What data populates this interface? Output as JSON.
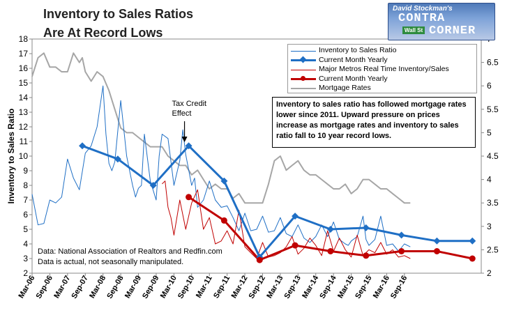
{
  "header": {
    "title_line1": "Inventory to Sales Ratios",
    "title_line2": "Are At Record Lows"
  },
  "logo": {
    "line1": "David Stockman's",
    "line2": "CONTRA",
    "line3": "CORNER",
    "sign": "Wall St"
  },
  "annotation_box": {
    "text": "Inventory to sales ratio has followed mortgage rates lower since 2011. Upward pressure on prices increase as mortgage rates and inventory to sales ratio fall to 10 year record lows."
  },
  "source_note": {
    "line1": "Data: National Association of Realtors and Redfin.com",
    "line2": "Data is actual, not seasonally manipulated."
  },
  "colors": {
    "nar_line": "#1f6fc5",
    "current_yearly": "#1f6fc5",
    "metros_line": "#c00000",
    "metros_yearly": "#c00000",
    "mortgage": "#a6a6a6"
  },
  "chart_data": {
    "type": "line",
    "title": "Inventory to Sales Ratios Are At Record Lows",
    "ylabel": "Inventory to Sales Ratio",
    "ylim": [
      2,
      18
    ],
    "y_ticks": [
      "2",
      "3",
      "4",
      "5",
      "6",
      "7",
      "8",
      "9",
      "10",
      "11",
      "12",
      "13",
      "14",
      "15",
      "16",
      "17",
      "18"
    ],
    "y2lim": [
      2,
      7
    ],
    "y2_ticks": [
      "2",
      "2.5",
      "3",
      "3.5",
      "4",
      "4.5",
      "5",
      "5.5",
      "6",
      "6.5",
      "7"
    ],
    "x_labels": [
      "Mar-06",
      "Sep-06",
      "Mar-07",
      "Sep-07",
      "Mar-08",
      "Sep-08",
      "Mar-09",
      "Sep-09",
      "Mar-10",
      "Sep-10",
      "Mar-11",
      "Sep-11",
      "Mar-12",
      "Sep-12",
      "Mar-13",
      "Sep-13",
      "Mar-14",
      "Sep-14",
      "Mar-15",
      "Sep-15",
      "Mar-16",
      "Sep-16"
    ],
    "grid": false,
    "legend_position": "top-right",
    "annotations": [
      {
        "text_line1": "Tax Credit",
        "text_line2": "Effect",
        "x": 53
      }
    ],
    "legend": [
      "Inventory to Sales Ratio",
      "Current Month Yearly",
      "Major Metros Real Time Inventory/Sales",
      "Current Month Yearly",
      "Mortgage Rates"
    ],
    "series": [
      {
        "name": "Inventory to Sales Ratio",
        "axis": "left",
        "x": [
          0,
          2,
          4,
          6,
          8,
          10,
          12,
          14,
          16,
          18,
          20,
          22,
          24,
          25,
          26,
          27,
          28,
          30,
          32,
          34,
          35,
          36,
          37,
          38,
          40,
          42,
          43,
          44,
          46,
          48,
          50,
          51,
          52,
          54,
          55,
          56,
          58,
          60,
          62,
          64,
          66,
          68,
          70,
          72,
          74,
          76,
          78,
          80,
          82,
          84,
          86,
          88,
          90,
          92,
          94,
          96,
          98,
          100,
          102,
          104,
          106,
          107,
          108,
          110,
          112,
          113,
          114,
          116,
          118,
          120,
          122,
          124,
          126,
          128
        ],
        "values": [
          7.4,
          5.3,
          5.4,
          7.0,
          6.8,
          7.2,
          9.8,
          8.5,
          7.7,
          10.2,
          10.7,
          12.0,
          14.8,
          11.5,
          9.5,
          9.0,
          9.6,
          13.8,
          10.0,
          8.0,
          7.2,
          7.8,
          8.0,
          11.5,
          8.3,
          7.0,
          10.0,
          11.5,
          11.2,
          8.0,
          9.7,
          11.8,
          10.1,
          8.0,
          8.5,
          6.5,
          7.0,
          8.3,
          7.0,
          6.5,
          6.6,
          5.8,
          4.9,
          6.1,
          4.9,
          5.0,
          5.9,
          4.8,
          4.9,
          5.8,
          4.7,
          4.5,
          5.3,
          4.4,
          4.1,
          4.5,
          5.3,
          4.5,
          5.5,
          4.3,
          4.0,
          3.9,
          4.2,
          4.5,
          5.9,
          4.3,
          3.9,
          4.3,
          5.9,
          3.9,
          4.0,
          3.5,
          4.0,
          3.8
        ]
      },
      {
        "name": "Current Month Yearly",
        "axis": "left",
        "x": [
          17,
          29,
          41,
          53,
          65,
          77,
          89,
          101,
          113,
          125,
          137,
          149
        ],
        "values": [
          10.7,
          9.8,
          8.0,
          10.7,
          8.3,
          3.1,
          5.9,
          5.0,
          5.1,
          4.6,
          4.2,
          4.2
        ]
      },
      {
        "name": "Major Metros Real Time Inventory/Sales",
        "axis": "left",
        "x": [
          44,
          45,
          46,
          47,
          48,
          50,
          52,
          54,
          56,
          58,
          60,
          62,
          64,
          66,
          68,
          70,
          72,
          74,
          76,
          78,
          80,
          82,
          84,
          86,
          88,
          90,
          92,
          94,
          96,
          98,
          100,
          102,
          104,
          106,
          108,
          110,
          112,
          114,
          116,
          118,
          120,
          122,
          124,
          126,
          128
        ],
        "values": [
          8.1,
          8.3,
          6.5,
          5.8,
          4.6,
          7.0,
          5.0,
          6.8,
          7.7,
          5.0,
          5.8,
          4.0,
          4.2,
          4.9,
          4.0,
          6.3,
          3.8,
          3.4,
          3.0,
          4.1,
          3.1,
          3.2,
          3.4,
          3.8,
          4.5,
          3.3,
          3.7,
          4.4,
          3.9,
          3.2,
          4.9,
          3.5,
          4.4,
          3.6,
          3.1,
          4.6,
          3.2,
          3.6,
          3.4,
          4.1,
          3.3,
          3.6,
          3.1,
          3.2,
          3.0
        ]
      },
      {
        "name": "Current Month Yearly",
        "axis": "left",
        "x": [
          53,
          65,
          77,
          89,
          101,
          113,
          125,
          137,
          149
        ],
        "values": [
          7.2,
          5.6,
          2.9,
          3.9,
          3.5,
          3.2,
          3.5,
          3.5,
          3.0
        ]
      },
      {
        "name": "Mortgage Rates",
        "axis": "right",
        "x": [
          0,
          2,
          4,
          6,
          8,
          10,
          12,
          14,
          16,
          17,
          18,
          20,
          22,
          24,
          26,
          28,
          30,
          32,
          34,
          36,
          38,
          40,
          42,
          44,
          46,
          48,
          50,
          52,
          54,
          56,
          58,
          60,
          62,
          64,
          66,
          68,
          70,
          72,
          74,
          76,
          78,
          80,
          82,
          84,
          86,
          88,
          90,
          92,
          94,
          96,
          98,
          100,
          102,
          104,
          106,
          108,
          110,
          112,
          114,
          116,
          118,
          120,
          122,
          124,
          126,
          128
        ],
        "values": [
          6.2,
          6.6,
          6.7,
          6.4,
          6.4,
          6.3,
          6.3,
          6.7,
          6.5,
          6.6,
          6.3,
          6.1,
          6.3,
          6.2,
          5.9,
          5.5,
          5.1,
          5.0,
          5.0,
          4.9,
          4.8,
          4.7,
          4.7,
          4.7,
          4.5,
          4.4,
          4.3,
          4.3,
          4.1,
          4.2,
          4.0,
          3.8,
          3.9,
          3.8,
          3.8,
          3.6,
          3.7,
          3.5,
          3.5,
          3.5,
          3.5,
          3.9,
          4.4,
          4.5,
          4.2,
          4.3,
          4.4,
          4.2,
          4.1,
          4.1,
          4.0,
          3.9,
          3.8,
          3.8,
          3.9,
          3.7,
          3.8,
          4.0,
          4.0,
          3.9,
          3.8,
          3.8,
          3.7,
          3.6,
          3.5,
          3.5
        ]
      }
    ]
  }
}
